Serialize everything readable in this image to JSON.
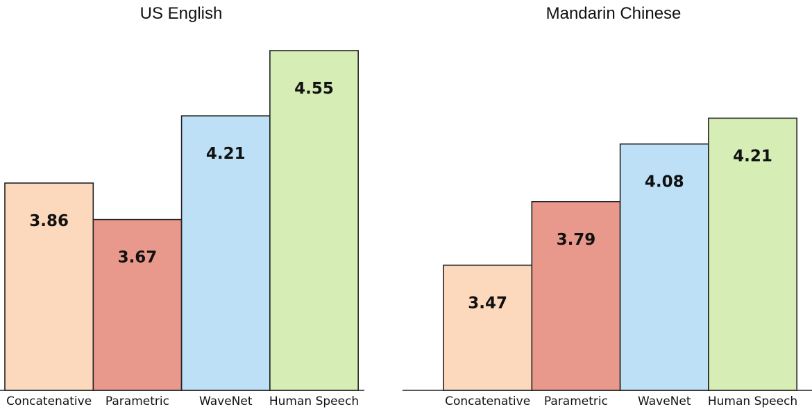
{
  "colors": {
    "Concatenative": "#fcd9bd",
    "Parametric": "#e8998b",
    "WaveNet": "#bde0f7",
    "Human Speech": "#d6edb5"
  },
  "chart_data": [
    {
      "type": "bar",
      "title": "US English",
      "categories": [
        "Concatenative",
        "Parametric",
        "WaveNet",
        "Human Speech"
      ],
      "values": [
        3.86,
        3.67,
        4.21,
        4.55
      ],
      "labels": [
        "3.86",
        "3.67",
        "4.21",
        "4.55"
      ],
      "ylim": [
        2.78,
        4.55
      ],
      "y_axis_visible": false,
      "grid": false
    },
    {
      "type": "bar",
      "title": "Mandarin Chinese",
      "categories": [
        "Concatenative",
        "Parametric",
        "WaveNet",
        "Human Speech"
      ],
      "values": [
        3.47,
        3.79,
        4.08,
        4.21
      ],
      "labels": [
        "3.47",
        "3.79",
        "4.08",
        "4.21"
      ],
      "ylim": [
        2.84,
        4.55
      ],
      "y_axis_visible": false,
      "grid": false
    }
  ]
}
